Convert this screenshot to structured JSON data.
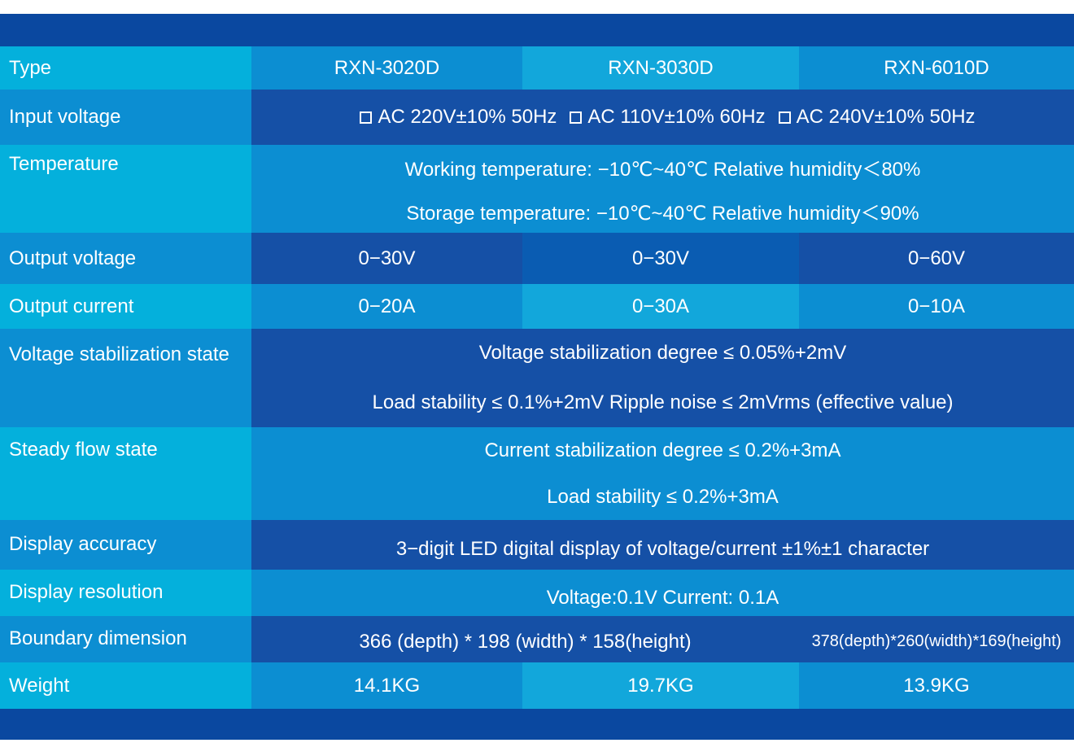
{
  "colors": {
    "navy": "#0a48a0",
    "dark_blue": "#1550a6",
    "mid_blue": "#0c8ed2",
    "cyan": "#04b0dc",
    "light_cyan": "#12a7db"
  },
  "checkbox_icon": "empty-square",
  "rows": {
    "type": {
      "label": "Type",
      "values": [
        "RXN-3020D",
        "RXN-3030D",
        "RXN-6010D"
      ]
    },
    "input_voltage": {
      "label": "Input voltage",
      "options": [
        "AC 220V±10% 50Hz",
        "AC 110V±10% 60Hz",
        "AC 240V±10% 50Hz"
      ]
    },
    "temperature": {
      "label": "Temperature",
      "lines": [
        "Working temperature: −10℃~40℃ Relative humidity＜80%",
        "Storage temperature: −10℃~40℃ Relative humidity＜90%"
      ]
    },
    "output_voltage": {
      "label": "Output voltage",
      "values": [
        "0−30V",
        "0−30V",
        "0−60V"
      ]
    },
    "output_current": {
      "label": "Output current",
      "values": [
        "0−20A",
        "0−30A",
        "0−10A"
      ]
    },
    "voltage_stabilization": {
      "label": "Voltage stabilization state",
      "lines": [
        "Voltage stabilization degree ≤ 0.05%+2mV",
        "Load stability ≤ 0.1%+2mV Ripple noise ≤ 2mVrms (effective value)"
      ]
    },
    "steady_flow": {
      "label": "Steady flow state",
      "lines": [
        "Current stabilization degree ≤ 0.2%+3mA",
        "Load stability ≤ 0.2%+3mA"
      ]
    },
    "display_accuracy": {
      "label": "Display accuracy",
      "value": "3−digit LED digital display of voltage/current ±1%±1 character"
    },
    "display_resolution": {
      "label": "Display resolution",
      "value": "Voltage:0.1V Current: 0.1A"
    },
    "boundary_dimension": {
      "label": "Boundary dimension",
      "values": [
        "366 (depth) * 198 (width) * 158(height)",
        "378(depth)*260(width)*169(height)"
      ]
    },
    "weight": {
      "label": "Weight",
      "values": [
        "14.1KG",
        "19.7KG",
        "13.9KG"
      ]
    }
  }
}
